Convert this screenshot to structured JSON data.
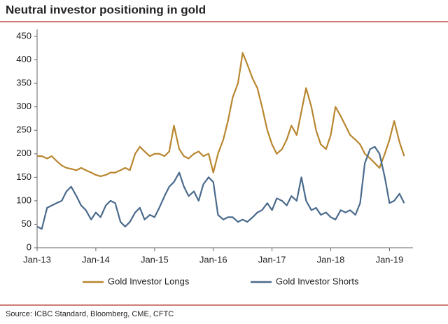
{
  "chart_data": {
    "type": "line",
    "title": "Neutral investor positioning in gold",
    "source": "Source: ICBC Standard, Bloomberg, CME, CFTC",
    "x": [
      2013,
      2013.08,
      2013.17,
      2013.25,
      2013.33,
      2013.42,
      2013.5,
      2013.58,
      2013.67,
      2013.75,
      2013.83,
      2013.92,
      2014,
      2014.08,
      2014.17,
      2014.25,
      2014.33,
      2014.42,
      2014.5,
      2014.58,
      2014.67,
      2014.75,
      2014.83,
      2014.92,
      2015,
      2015.08,
      2015.17,
      2015.25,
      2015.33,
      2015.42,
      2015.5,
      2015.58,
      2015.67,
      2015.75,
      2015.83,
      2015.92,
      2016,
      2016.08,
      2016.17,
      2016.25,
      2016.33,
      2016.42,
      2016.5,
      2016.58,
      2016.67,
      2016.75,
      2016.83,
      2016.92,
      2017,
      2017.08,
      2017.17,
      2017.25,
      2017.33,
      2017.42,
      2017.5,
      2017.58,
      2017.67,
      2017.75,
      2017.83,
      2017.92,
      2018,
      2018.08,
      2018.17,
      2018.25,
      2018.33,
      2018.42,
      2018.5,
      2018.58,
      2018.67,
      2018.75,
      2018.83,
      2018.92,
      2019,
      2019.08,
      2019.17,
      2019.25
    ],
    "series": [
      {
        "name": "Gold Investor Longs",
        "color": "#b8862f",
        "values": [
          195,
          195,
          190,
          195,
          185,
          175,
          170,
          168,
          165,
          170,
          165,
          160,
          155,
          152,
          155,
          160,
          160,
          165,
          170,
          165,
          200,
          215,
          205,
          195,
          200,
          200,
          195,
          205,
          260,
          210,
          195,
          190,
          200,
          205,
          195,
          200,
          160,
          200,
          230,
          270,
          320,
          350,
          415,
          390,
          360,
          340,
          300,
          250,
          220,
          200,
          210,
          230,
          260,
          240,
          290,
          340,
          300,
          250,
          220,
          210,
          240,
          300,
          280,
          260,
          240,
          230,
          220,
          200,
          190,
          180,
          170,
          200,
          230,
          270,
          225,
          195
        ]
      },
      {
        "name": "Gold Investor Shorts",
        "color": "#4a6a8c",
        "values": [
          45,
          40,
          85,
          90,
          95,
          100,
          120,
          130,
          110,
          90,
          80,
          60,
          75,
          65,
          90,
          100,
          95,
          55,
          45,
          55,
          75,
          85,
          60,
          70,
          65,
          85,
          110,
          130,
          140,
          160,
          130,
          110,
          120,
          100,
          135,
          150,
          140,
          70,
          60,
          65,
          65,
          55,
          60,
          55,
          65,
          75,
          80,
          95,
          80,
          105,
          100,
          90,
          110,
          100,
          150,
          100,
          80,
          85,
          70,
          75,
          65,
          60,
          80,
          75,
          80,
          70,
          95,
          180,
          210,
          215,
          200,
          150,
          95,
          100,
          115,
          95
        ]
      }
    ],
    "xlim": [
      2013,
      2019.4
    ],
    "xticks": [
      {
        "value": 2013,
        "label": "Jan-13"
      },
      {
        "value": 2014,
        "label": "Jan-14"
      },
      {
        "value": 2015,
        "label": "Jan-15"
      },
      {
        "value": 2016,
        "label": "Jan-16"
      },
      {
        "value": 2017,
        "label": "Jan-17"
      },
      {
        "value": 2018,
        "label": "Jan-18"
      },
      {
        "value": 2019,
        "label": "Jan-19"
      }
    ],
    "ylim": [
      0,
      450
    ],
    "yticks": [
      0,
      50,
      100,
      150,
      200,
      250,
      300,
      350,
      400,
      450
    ]
  }
}
